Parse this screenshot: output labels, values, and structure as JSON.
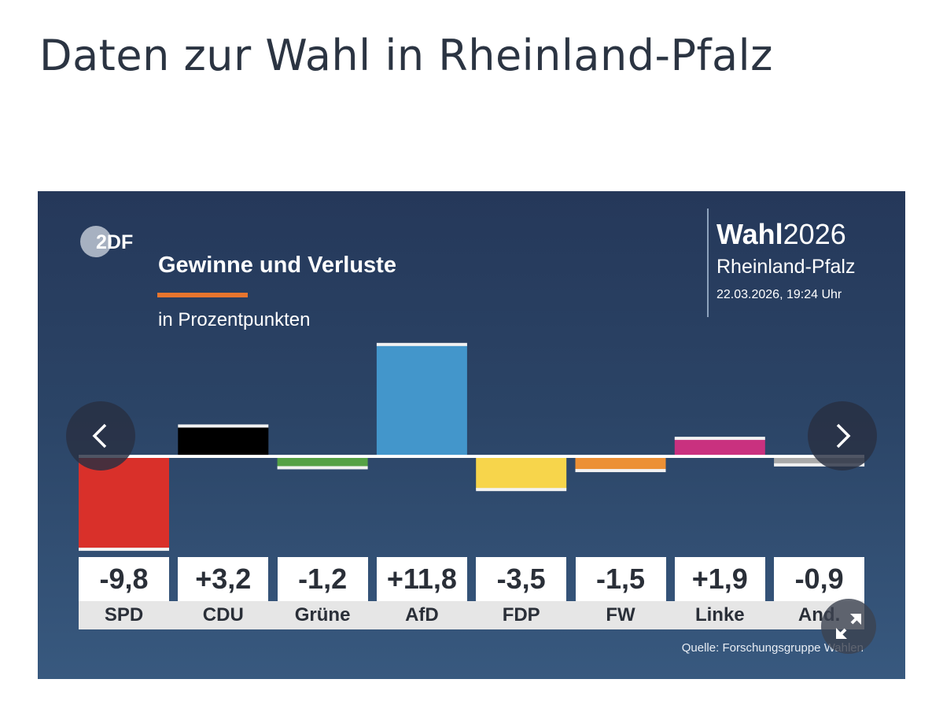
{
  "page": {
    "title": "Daten zur Wahl in Rheinland-Pfalz"
  },
  "panel": {
    "logo": "2DF",
    "brand": {
      "wahl_bold": "Wahl",
      "wahl_year": "2026",
      "region": "Rheinland-Pfalz",
      "datetime": "22.03.2026, 19:24 Uhr"
    },
    "source": "Quelle: Forschungsgruppe Wahlen",
    "controls": {
      "prev": "chevron-left-icon",
      "next": "chevron-right-icon",
      "expand": "expand-icon"
    }
  },
  "chart_data": {
    "type": "bar",
    "title": "Gewinne und Verluste",
    "subtitle": "in Prozentpunkten",
    "xlabel": "",
    "ylabel": "",
    "ylim": [
      -9.8,
      11.8
    ],
    "categories": [
      "SPD",
      "CDU",
      "Grüne",
      "AfD",
      "FDP",
      "FW",
      "Linke",
      "And."
    ],
    "values": [
      -9.8,
      3.2,
      -1.2,
      11.8,
      -3.5,
      -1.5,
      1.9,
      -0.9
    ],
    "value_labels": [
      "-9,8",
      "+3,2",
      "-1,2",
      "+11,8",
      "-3,5",
      "-1,5",
      "+1,9",
      "-0,9"
    ],
    "colors": [
      "#d9302a",
      "#000000",
      "#55a145",
      "#4396cb",
      "#f7d54b",
      "#ec9035",
      "#c9317f",
      "#a9a9a9"
    ],
    "accent_color": "#e8752e",
    "grid": false
  }
}
